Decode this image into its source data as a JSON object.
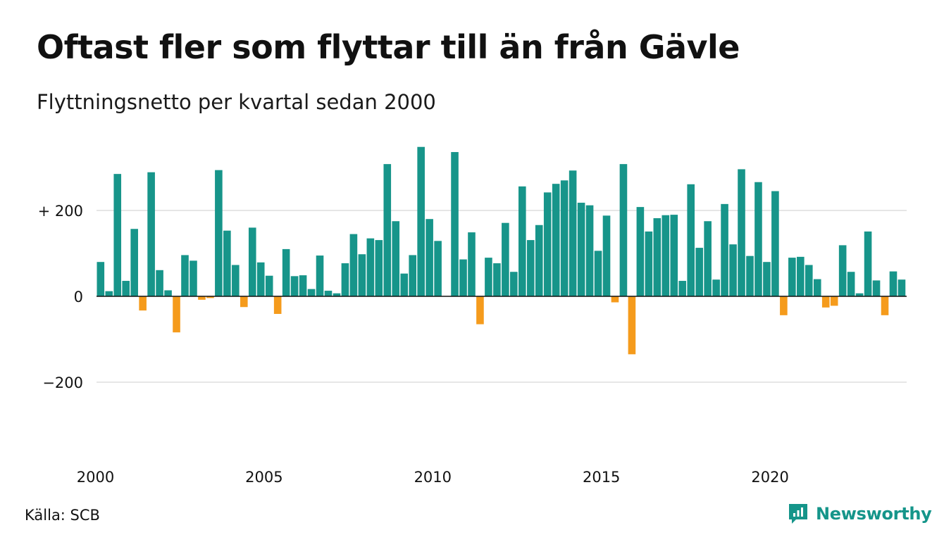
{
  "title": "Oftast fler som flyttar till än från Gävle",
  "subtitle": "Flyttningsnetto per kvartal sedan 2000",
  "source": "Källa: SCB",
  "brand": {
    "name": "Newsworthy",
    "icon": "newsworthy-logo-icon",
    "color": "#15958a"
  },
  "colors": {
    "positive": "#17958a",
    "negative": "#f59b1c",
    "grid": "#e6e6e6",
    "zero": "#111111"
  },
  "chart_data": {
    "type": "bar",
    "x_start": "2000 Q1",
    "x_tick_labels": [
      "2000",
      "2005",
      "2010",
      "2015",
      "2020"
    ],
    "y_tick_labels": [
      "+ 200",
      "0",
      "−200"
    ],
    "y_ticks": [
      200,
      0,
      -200
    ],
    "ylim": [
      -350,
      350
    ],
    "grid": true,
    "values": [
      80,
      12,
      285,
      36,
      157,
      -33,
      289,
      61,
      14,
      -84,
      96,
      83,
      -8,
      -4,
      294,
      153,
      73,
      -25,
      160,
      79,
      48,
      -41,
      110,
      47,
      49,
      17,
      95,
      13,
      7,
      77,
      145,
      98,
      135,
      131,
      308,
      175,
      53,
      96,
      348,
      180,
      129,
      0,
      336,
      86,
      149,
      -65,
      90,
      77,
      171,
      57,
      256,
      131,
      166,
      242,
      262,
      270,
      293,
      218,
      212,
      106,
      188,
      -14,
      308,
      -135,
      208,
      151,
      182,
      189,
      190,
      36,
      261,
      113,
      175,
      39,
      215,
      121,
      296,
      94,
      266,
      80,
      245,
      -44,
      90,
      92,
      73,
      40,
      -26,
      -22,
      119,
      57,
      7,
      151,
      37,
      -44,
      58,
      39
    ]
  }
}
